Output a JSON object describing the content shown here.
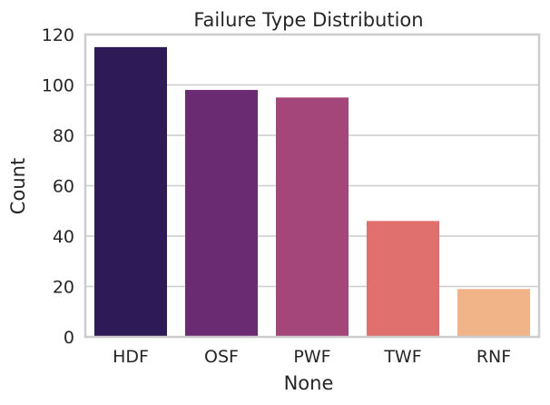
{
  "chart_data": {
    "type": "bar",
    "title": "Failure Type Distribution",
    "xlabel": "None",
    "ylabel": "Count",
    "categories": [
      "HDF",
      "OSF",
      "PWF",
      "TWF",
      "RNF"
    ],
    "values": [
      115,
      98,
      95,
      46,
      19
    ],
    "colors": [
      "#2d1a56",
      "#6b2b73",
      "#a5467a",
      "#e0706d",
      "#f0b488"
    ],
    "ylim": [
      0,
      120
    ],
    "yticks": [
      0,
      20,
      40,
      60,
      80,
      100,
      120
    ],
    "grid": "horizontal",
    "legend": "none"
  }
}
